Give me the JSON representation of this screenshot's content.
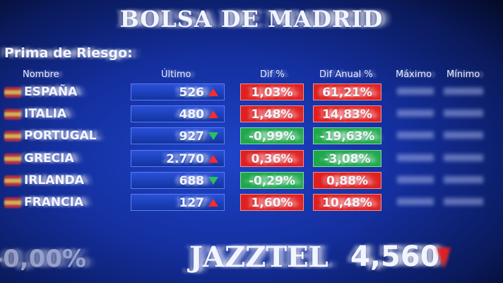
{
  "header": {
    "title": "BOLSA DE MADRID",
    "section": "Prima de Riesgo:"
  },
  "table": {
    "columns": [
      "Nombre",
      "Último",
      "Dif %",
      "Dif Anual %",
      "Máximo",
      "Mínimo"
    ],
    "rows": [
      {
        "name": "ESPAÑA",
        "last": "526",
        "arrow": "up",
        "dif": "1,03%",
        "dif_color": "#e02020",
        "annual": "61,21%",
        "annual_color": "#e02020"
      },
      {
        "name": "ITALIA",
        "last": "480",
        "arrow": "up",
        "dif": "1,48%",
        "dif_color": "#e02020",
        "annual": "14,83%",
        "annual_color": "#e02020"
      },
      {
        "name": "PORTUGAL",
        "last": "927",
        "arrow": "down",
        "dif": "-0,99%",
        "dif_color": "#1ea84a",
        "annual": "-19,63%",
        "annual_color": "#1ea84a"
      },
      {
        "name": "GRECIA",
        "last": "2.770",
        "arrow": "up",
        "dif": "0,36%",
        "dif_color": "#e02020",
        "annual": "-3,08%",
        "annual_color": "#1ea84a"
      },
      {
        "name": "IRLANDA",
        "last": "688",
        "arrow": "down",
        "dif": "-0,29%",
        "dif_color": "#1ea84a",
        "annual": "0,88%",
        "annual_color": "#e02020"
      },
      {
        "name": "FRANCIA",
        "last": "127",
        "arrow": "up",
        "dif": "1,60%",
        "dif_color": "#e02020",
        "annual": "10,48%",
        "annual_color": "#e02020"
      }
    ]
  },
  "ticker": {
    "left": "-0,00%",
    "name": "JAZZTEL",
    "price": "4,560"
  }
}
